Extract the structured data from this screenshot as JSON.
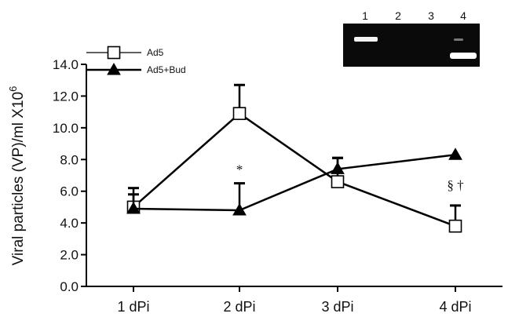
{
  "chart_data": {
    "type": "line",
    "xlabel": "",
    "ylabel": "Viral particles (VP)/ml X10",
    "ylabel_superscript": "6",
    "categories": [
      "1 dPi",
      "2 dPi",
      "3 dPi",
      "4 dPi"
    ],
    "ylim": [
      0,
      14
    ],
    "yticks": [
      "0.0",
      "2.0",
      "4.0",
      "6.0",
      "8.0",
      "10.0",
      "12.0",
      "14.0"
    ],
    "grid": false,
    "legend_position": "top-left",
    "series": [
      {
        "name": "Ad5",
        "marker": "open-square",
        "values": [
          5.0,
          10.9,
          6.6,
          3.8
        ],
        "error_plus": [
          1.2,
          1.8,
          1.5,
          1.3
        ]
      },
      {
        "name": "Ad5+Bud",
        "marker": "filled-triangle",
        "values": [
          4.9,
          4.8,
          7.4,
          8.3
        ],
        "error_plus": [
          0.9,
          1.7,
          0.7,
          0
        ]
      }
    ],
    "annotations": [
      {
        "text": "*",
        "category": "2 dPi",
        "y": 7.1
      },
      {
        "text": "§ †",
        "category": "4 dPi",
        "y": 6.1
      }
    ],
    "inset_gel": {
      "lanes": [
        "1",
        "2",
        "3",
        "4"
      ]
    },
    "colors": {
      "line": "#000000",
      "gel_background": "#0a0a0a",
      "gel_band": "#ffffff"
    }
  }
}
